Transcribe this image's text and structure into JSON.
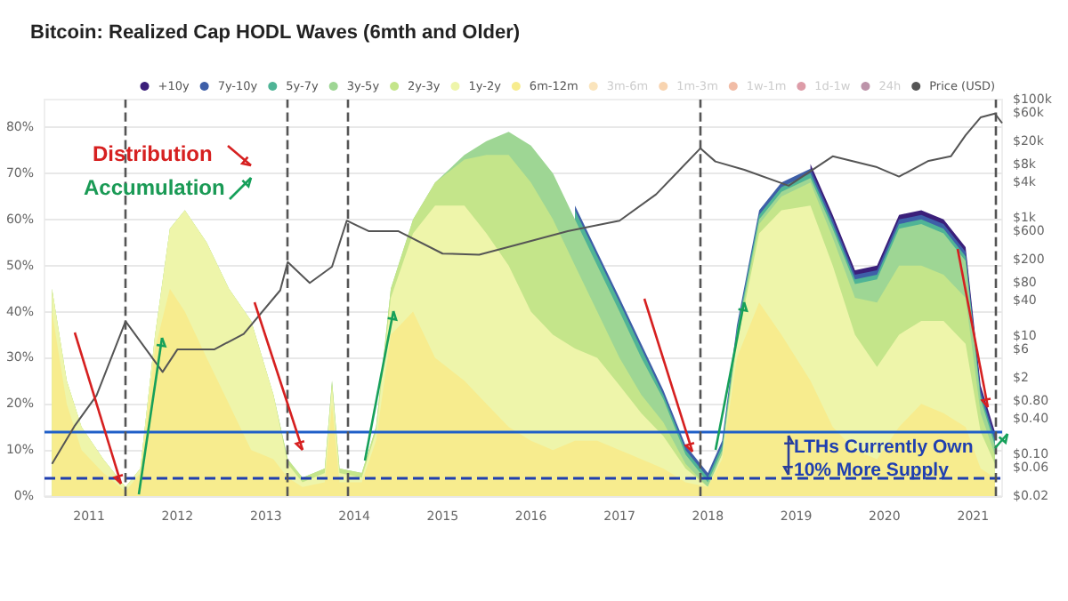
{
  "chart_data": {
    "type": "area",
    "stacked": true,
    "title": "Bitcoin: Realized Cap HODL Waves (6mth and Older)",
    "x": [
      "2010-08",
      "2010-10",
      "2010-12",
      "2011-03",
      "2011-06",
      "2011-08",
      "2011-10",
      "2011-12",
      "2012-02",
      "2012-05",
      "2012-08",
      "2012-11",
      "2013-02",
      "2013-04",
      "2013-06",
      "2013-09",
      "2013-10",
      "2013-11",
      "2014-02",
      "2014-04",
      "2014-06",
      "2014-09",
      "2014-12",
      "2015-04",
      "2015-07",
      "2015-10",
      "2016-01",
      "2016-04",
      "2016-07",
      "2016-10",
      "2017-01",
      "2017-04",
      "2017-07",
      "2017-10",
      "2018-01",
      "2018-03",
      "2018-05",
      "2018-08",
      "2018-11",
      "2019-03",
      "2019-06",
      "2019-09",
      "2019-12",
      "2020-03",
      "2020-06",
      "2020-09",
      "2020-12",
      "2021-02",
      "2021-04"
    ],
    "series": [
      {
        "name": "+10y",
        "color": "#3b1f7a",
        "values": [
          null,
          null,
          null,
          null,
          null,
          null,
          null,
          null,
          null,
          null,
          null,
          null,
          null,
          null,
          null,
          null,
          null,
          null,
          null,
          null,
          null,
          null,
          null,
          null,
          null,
          null,
          null,
          null,
          null,
          null,
          null,
          null,
          null,
          null,
          null,
          null,
          null,
          null,
          null,
          1,
          1,
          1,
          1,
          1,
          1,
          1,
          1,
          1,
          1
        ]
      },
      {
        "name": "7y-10y",
        "color": "#3e5fa8",
        "values": [
          null,
          null,
          null,
          null,
          null,
          null,
          null,
          null,
          null,
          null,
          null,
          null,
          null,
          null,
          null,
          null,
          null,
          null,
          null,
          null,
          null,
          null,
          null,
          null,
          null,
          null,
          null,
          null,
          1,
          1,
          1,
          1,
          1,
          1,
          1,
          1,
          1,
          1,
          1,
          1,
          1,
          1,
          1,
          1,
          1,
          1,
          1,
          1,
          1
        ]
      },
      {
        "name": "5y-7y",
        "color": "#4fb496",
        "values": [
          null,
          null,
          null,
          null,
          null,
          null,
          null,
          null,
          null,
          null,
          null,
          null,
          null,
          null,
          null,
          null,
          null,
          null,
          null,
          null,
          null,
          null,
          null,
          null,
          null,
          null,
          null,
          null,
          2,
          2,
          2,
          2,
          1,
          1,
          1,
          1,
          1,
          1,
          1,
          1,
          1,
          1,
          1,
          1,
          1,
          1,
          1,
          1,
          1
        ]
      },
      {
        "name": "3y-5y",
        "color": "#9ed694",
        "values": [
          0,
          0,
          0,
          0,
          0,
          0,
          0,
          0,
          0,
          0,
          0,
          0,
          0,
          0,
          0,
          0,
          0,
          0,
          0,
          0,
          0,
          0,
          0,
          1,
          3,
          5,
          8,
          10,
          10,
          10,
          10,
          8,
          5,
          2,
          1,
          1,
          1,
          1,
          1,
          1,
          2,
          3,
          5,
          8,
          9,
          9,
          8,
          3,
          2
        ]
      },
      {
        "name": "2y-3y",
        "color": "#c4e58a",
        "values": [
          0,
          0,
          0,
          0,
          0,
          0,
          0,
          0,
          0,
          0,
          0,
          0,
          0,
          1,
          1,
          1,
          1,
          1,
          1,
          1,
          2,
          3,
          5,
          10,
          17,
          24,
          28,
          25,
          18,
          10,
          6,
          4,
          3,
          1,
          0,
          0,
          1,
          2,
          3,
          5,
          6,
          8,
          14,
          15,
          12,
          10,
          10,
          4,
          2
        ]
      },
      {
        "name": "1y-2y",
        "color": "#eef5aa",
        "values": [
          5,
          5,
          5,
          3,
          1,
          1,
          3,
          13,
          22,
          25,
          25,
          28,
          14,
          3,
          1,
          2,
          4,
          2,
          1,
          2,
          8,
          17,
          33,
          38,
          37,
          35,
          28,
          25,
          20,
          18,
          14,
          10,
          7,
          3,
          0,
          1,
          3,
          15,
          27,
          38,
          35,
          25,
          20,
          20,
          18,
          20,
          18,
          8,
          3
        ]
      },
      {
        "name": "6m-12m",
        "color": "#f7ec8e",
        "values": [
          40,
          20,
          10,
          5,
          1,
          5,
          32,
          45,
          40,
          30,
          20,
          10,
          8,
          4,
          2,
          3,
          20,
          3,
          3,
          12,
          35,
          40,
          30,
          25,
          20,
          15,
          12,
          10,
          12,
          12,
          10,
          8,
          6,
          3,
          2,
          8,
          30,
          42,
          35,
          25,
          15,
          10,
          8,
          15,
          20,
          18,
          15,
          6,
          4
        ]
      },
      {
        "name": "3m-6m",
        "color": "#f4c36a",
        "values": [
          null,
          null,
          null,
          null,
          null,
          null,
          null,
          null,
          null,
          null,
          null,
          null,
          null,
          null,
          null,
          null,
          null,
          null,
          null,
          null,
          null,
          null,
          null,
          null,
          null,
          null,
          null,
          null,
          null,
          null,
          null,
          null,
          null,
          null,
          null,
          null,
          null,
          null,
          null,
          null,
          null,
          null,
          null,
          null,
          null,
          null,
          null,
          null,
          null
        ]
      },
      {
        "name": "1m-3m",
        "color": "#f0a050",
        "values": [
          null,
          null,
          null,
          null,
          null,
          null,
          null,
          null,
          null,
          null,
          null,
          null,
          null,
          null,
          null,
          null,
          null,
          null,
          null,
          null,
          null,
          null,
          null,
          null,
          null,
          null,
          null,
          null,
          null,
          null,
          null,
          null,
          null,
          null,
          null,
          null,
          null,
          null,
          null,
          null,
          null,
          null,
          null,
          null,
          null,
          null,
          null,
          null,
          null
        ]
      },
      {
        "name": "1w-1m",
        "color": "#e06a3a",
        "values": [
          null,
          null,
          null,
          null,
          null,
          null,
          null,
          null,
          null,
          null,
          null,
          null,
          null,
          null,
          null,
          null,
          null,
          null,
          null,
          null,
          null,
          null,
          null,
          null,
          null,
          null,
          null,
          null,
          null,
          null,
          null,
          null,
          null,
          null,
          null,
          null,
          null,
          null,
          null,
          null,
          null,
          null,
          null,
          null,
          null,
          null,
          null,
          null,
          null
        ]
      },
      {
        "name": "1d-1w",
        "color": "#b3243f",
        "values": [
          null,
          null,
          null,
          null,
          null,
          null,
          null,
          null,
          null,
          null,
          null,
          null,
          null,
          null,
          null,
          null,
          null,
          null,
          null,
          null,
          null,
          null,
          null,
          null,
          null,
          null,
          null,
          null,
          null,
          null,
          null,
          null,
          null,
          null,
          null,
          null,
          null,
          null,
          null,
          null,
          null,
          null,
          null,
          null,
          null,
          null,
          null,
          null,
          null
        ]
      },
      {
        "name": "24h",
        "color": "#6b1040",
        "values": [
          null,
          null,
          null,
          null,
          null,
          null,
          null,
          null,
          null,
          null,
          null,
          null,
          null,
          null,
          null,
          null,
          null,
          null,
          null,
          null,
          null,
          null,
          null,
          null,
          null,
          null,
          null,
          null,
          null,
          null,
          null,
          null,
          null,
          null,
          null,
          null,
          null,
          null,
          null,
          null,
          null,
          null,
          null,
          null,
          null,
          null,
          null,
          null,
          null
        ]
      },
      {
        "name": "Price (USD)",
        "type": "line",
        "axis": "y2",
        "color": "#555555",
        "x": [
          "2010-08",
          "2010-11",
          "2011-02",
          "2011-06",
          "2011-11",
          "2012-01",
          "2012-06",
          "2012-10",
          "2013-03",
          "2013-04",
          "2013-07",
          "2013-10",
          "2013-12",
          "2014-03",
          "2014-07",
          "2015-01",
          "2015-06",
          "2015-11",
          "2016-06",
          "2017-01",
          "2017-06",
          "2017-12",
          "2018-02",
          "2018-06",
          "2018-12",
          "2019-06",
          "2019-12",
          "2020-03",
          "2020-07",
          "2020-10",
          "2020-12",
          "2021-02",
          "2021-04",
          "2021-05"
        ],
        "values": [
          0.07,
          0.3,
          1,
          18,
          2.5,
          6,
          6,
          11,
          60,
          180,
          80,
          150,
          900,
          600,
          600,
          250,
          240,
          350,
          600,
          900,
          2500,
          15000,
          9000,
          6500,
          3500,
          11000,
          7200,
          5000,
          9200,
          11000,
          25000,
          50000,
          58000,
          40000
        ]
      }
    ],
    "xlim": [
      "2010-07",
      "2021-05"
    ],
    "xticks": [
      "2011",
      "2012",
      "2013",
      "2014",
      "2015",
      "2016",
      "2017",
      "2018",
      "2019",
      "2020",
      "2021"
    ],
    "ylim": [
      0,
      86
    ],
    "yticks": [
      {
        "value": 0,
        "label": "0%"
      },
      {
        "value": 10,
        "label": "10%"
      },
      {
        "value": 20,
        "label": "20%"
      },
      {
        "value": 30,
        "label": "30%"
      },
      {
        "value": 40,
        "label": "40%"
      },
      {
        "value": 50,
        "label": "50%"
      },
      {
        "value": 60,
        "label": "60%"
      },
      {
        "value": 70,
        "label": "70%"
      },
      {
        "value": 80,
        "label": "80%"
      }
    ],
    "log": "y2",
    "y2lim": [
      0.02,
      100000
    ],
    "y2ticks": [
      {
        "value": 0.02,
        "label": "$0.02"
      },
      {
        "value": 0.06,
        "label": "$0.06"
      },
      {
        "value": 0.1,
        "label": "$0.10"
      },
      {
        "value": 0.4,
        "label": "$0.40"
      },
      {
        "value": 0.8,
        "label": "$0.80"
      },
      {
        "value": 2,
        "label": "$2"
      },
      {
        "value": 6,
        "label": "$6"
      },
      {
        "value": 10,
        "label": "$10"
      },
      {
        "value": 40,
        "label": "$40"
      },
      {
        "value": 80,
        "label": "$80"
      },
      {
        "value": 200,
        "label": "$200"
      },
      {
        "value": 600,
        "label": "$600"
      },
      {
        "value": 1000,
        "label": "$1k"
      },
      {
        "value": 4000,
        "label": "$4k"
      },
      {
        "value": 8000,
        "label": "$8k"
      },
      {
        "value": 20000,
        "label": "$20k"
      },
      {
        "value": 60000,
        "label": "$60k"
      },
      {
        "value": 100000,
        "label": "$100k"
      }
    ],
    "grid": "y",
    "legend": "top right",
    "ref_lines": [
      {
        "axis": "y",
        "value": 14,
        "color": "#1f5fc8",
        "line_style": "solid"
      },
      {
        "axis": "y",
        "value": 4,
        "color": "#1f3fb0",
        "line_style": "dashed"
      },
      {
        "axis": "x",
        "value": "2011-06",
        "color": "#555555",
        "line_style": "dashed"
      },
      {
        "axis": "x",
        "value": "2013-04",
        "color": "#555555",
        "line_style": "dashed"
      },
      {
        "axis": "x",
        "value": "2013-12",
        "color": "#555555",
        "line_style": "dashed"
      },
      {
        "axis": "x",
        "value": "2017-12",
        "color": "#555555",
        "line_style": "dashed"
      },
      {
        "axis": "x",
        "value": "2021-04",
        "color": "#555555",
        "line_style": "dashed"
      }
    ],
    "annotations": [
      "Distribution",
      "Accumulation",
      "LTHs Currently Own\n10% More Supply"
    ]
  }
}
